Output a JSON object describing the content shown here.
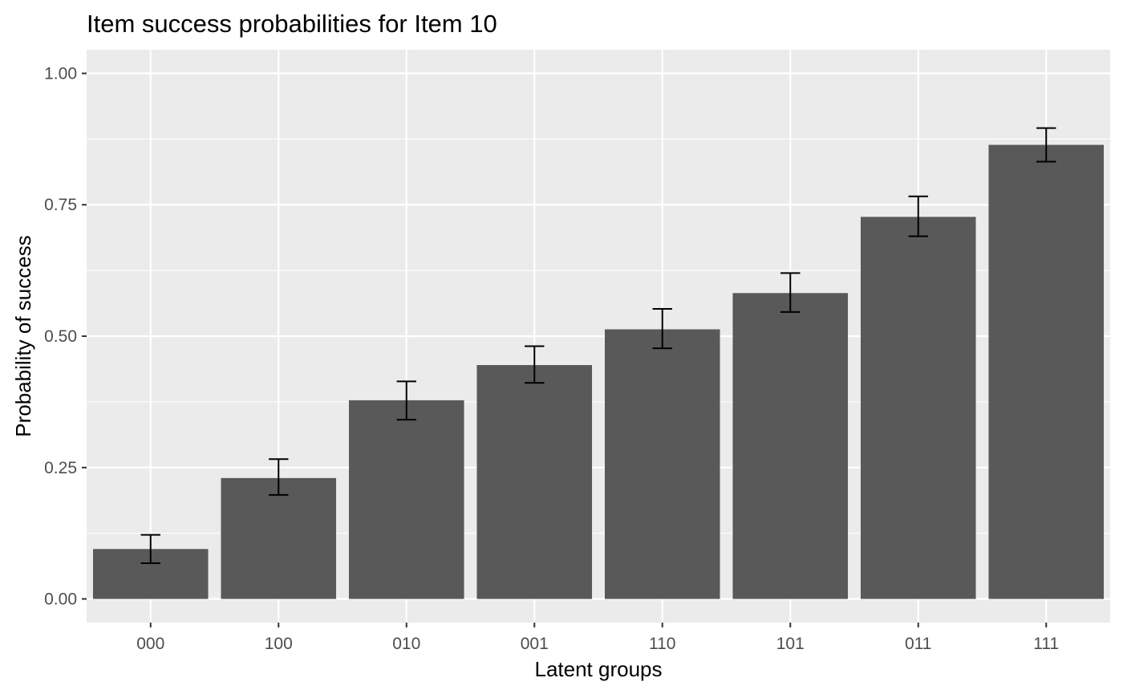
{
  "chart_data": {
    "type": "bar",
    "title": "Item success probabilities for Item 10",
    "xlabel": "Latent groups",
    "ylabel": "Probability of success",
    "categories": [
      "000",
      "100",
      "010",
      "001",
      "110",
      "101",
      "011",
      "111"
    ],
    "values": [
      0.095,
      0.23,
      0.378,
      0.445,
      0.513,
      0.582,
      0.727,
      0.864
    ],
    "error_lower": [
      0.068,
      0.198,
      0.341,
      0.411,
      0.477,
      0.546,
      0.69,
      0.832
    ],
    "error_upper": [
      0.122,
      0.266,
      0.414,
      0.481,
      0.552,
      0.62,
      0.766,
      0.896
    ],
    "ylim": [
      -0.045,
      1.045
    ],
    "yticks": [
      0.0,
      0.25,
      0.5,
      0.75,
      1.0
    ],
    "ytick_labels": [
      "0.00",
      "0.25",
      "0.50",
      "0.75",
      "1.00"
    ],
    "grid": true,
    "legend": "none",
    "colors": {
      "panel_background": "#EBEBEB",
      "grid": "#FFFFFF",
      "bar_fill": "#595959",
      "error_bar": "#000000",
      "axis_text": "#4D4D4D",
      "title_text": "#000000"
    }
  }
}
